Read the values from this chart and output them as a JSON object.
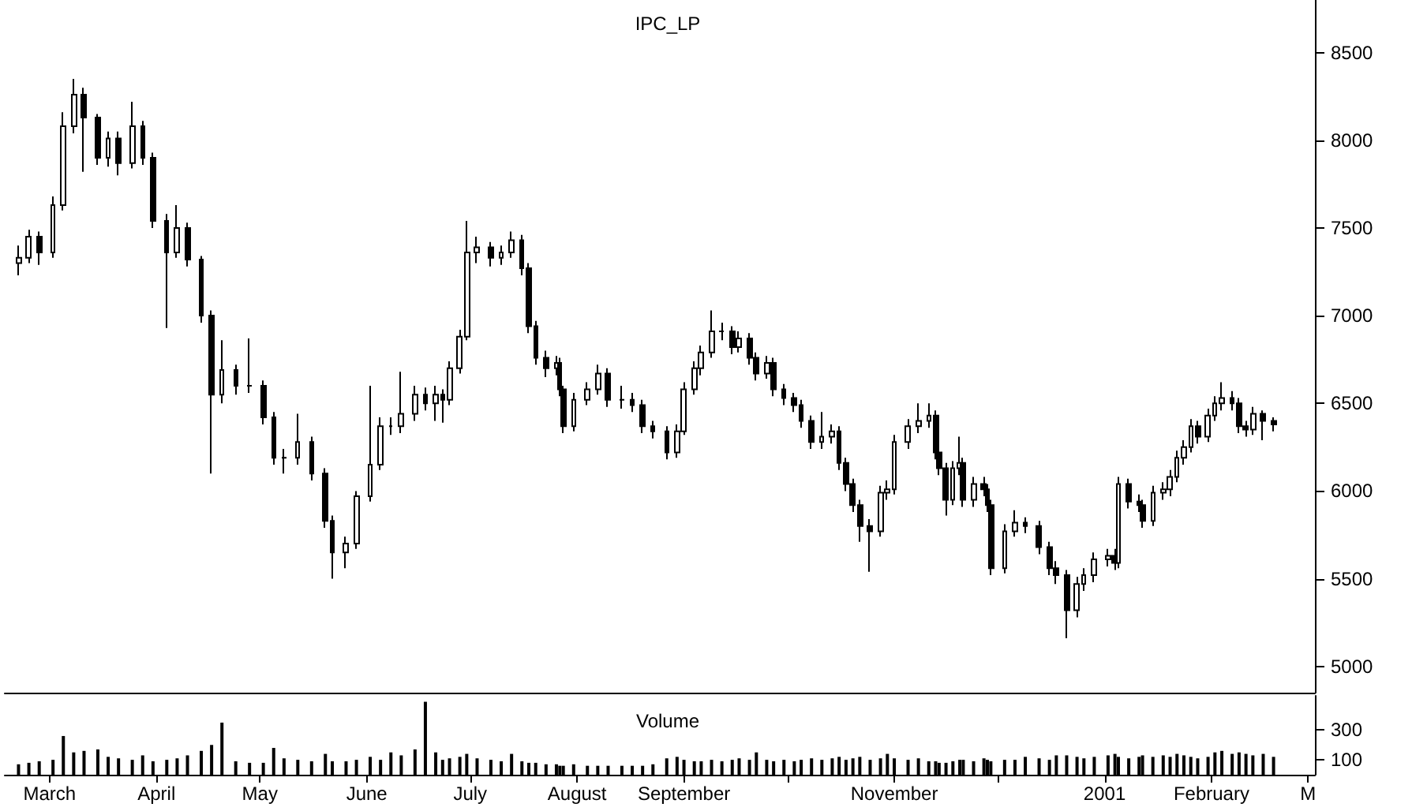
{
  "chart_data": [
    {
      "type": "candlestick",
      "title": "IPC_LP",
      "color": "#000000",
      "tick_labels": "y",
      "xlim": [
        "2000-02-17",
        "2001-03-03"
      ],
      "ylim": [
        4850,
        8800
      ],
      "yticks": [
        5000,
        5500,
        6000,
        6500,
        7000,
        7500,
        8000,
        8500
      ],
      "x": [
        "2000-02-21",
        "2000-02-24",
        "2000-02-27",
        "2000-03-02",
        "2000-03-05",
        "2000-03-08",
        "2000-03-11",
        "2000-03-15",
        "2000-03-18",
        "2000-03-21",
        "2000-03-25",
        "2000-03-28",
        "2000-03-31",
        "2000-04-04",
        "2000-04-07",
        "2000-04-10",
        "2000-04-14",
        "2000-04-17",
        "2000-04-20",
        "2000-04-24",
        "2000-04-28",
        "2000-05-02",
        "2000-05-05",
        "2000-05-08",
        "2000-05-12",
        "2000-05-16",
        "2000-05-20",
        "2000-05-22",
        "2000-05-26",
        "2000-05-29",
        "2000-06-02",
        "2000-06-05",
        "2000-06-08",
        "2000-06-11",
        "2000-06-15",
        "2000-06-18",
        "2000-06-21",
        "2000-06-23",
        "2000-06-25",
        "2000-06-28",
        "2000-06-30",
        "2000-07-03",
        "2000-07-07",
        "2000-07-10",
        "2000-07-13",
        "2000-07-16",
        "2000-07-18",
        "2000-07-20",
        "2000-07-23",
        "2000-07-26",
        "2000-07-27",
        "2000-07-28",
        "2000-07-31",
        "2000-08-04",
        "2000-08-07",
        "2000-08-10",
        "2000-08-14",
        "2000-08-17",
        "2000-08-20",
        "2000-08-23",
        "2000-08-27",
        "2000-08-30",
        "2000-09-01",
        "2000-09-04",
        "2000-09-06",
        "2000-09-09",
        "2000-09-12",
        "2000-09-15",
        "2000-09-17",
        "2000-09-20",
        "2000-09-22",
        "2000-09-25",
        "2000-09-27",
        "2000-09-30",
        "2000-10-03",
        "2000-10-05",
        "2000-10-08",
        "2000-10-11",
        "2000-10-14",
        "2000-10-16",
        "2000-10-18",
        "2000-10-20",
        "2000-10-22",
        "2000-10-25",
        "2000-10-28",
        "2000-10-30",
        "2000-11-01",
        "2000-11-05",
        "2000-11-08",
        "2000-11-11",
        "2000-11-13",
        "2000-11-14",
        "2000-11-16",
        "2000-11-18",
        "2000-11-20",
        "2000-11-21",
        "2000-11-24",
        "2000-11-27",
        "2000-11-28",
        "2000-11-29",
        "2000-12-03",
        "2000-12-06",
        "2000-12-09",
        "2000-12-13",
        "2000-12-16",
        "2000-12-18",
        "2000-12-21",
        "2000-12-24",
        "2000-12-26",
        "2000-12-29",
        "2001-01-02",
        "2001-01-04",
        "2001-01-05",
        "2001-01-08",
        "2001-01-11",
        "2001-01-12",
        "2001-01-15",
        "2001-01-18",
        "2001-01-20",
        "2001-01-22",
        "2001-01-24",
        "2001-01-26",
        "2001-01-28",
        "2001-01-31",
        "2001-02-02",
        "2001-02-04",
        "2001-02-07",
        "2001-02-09",
        "2001-02-11",
        "2001-02-13",
        "2001-02-16",
        "2001-02-19"
      ],
      "ohlc": [
        [
          7300,
          7400,
          7230,
          7330
        ],
        [
          7330,
          7490,
          7300,
          7450
        ],
        [
          7450,
          7480,
          7290,
          7360
        ],
        [
          7360,
          7680,
          7330,
          7630
        ],
        [
          7630,
          8160,
          7600,
          8080
        ],
        [
          8080,
          8350,
          8040,
          8260
        ],
        [
          8260,
          8300,
          7820,
          8130
        ],
        [
          8130,
          8150,
          7860,
          7900
        ],
        [
          7900,
          8050,
          7850,
          8010
        ],
        [
          8010,
          8050,
          7800,
          7870
        ],
        [
          7870,
          8220,
          7840,
          8080
        ],
        [
          8080,
          8110,
          7860,
          7900
        ],
        [
          7900,
          7930,
          7500,
          7540
        ],
        [
          7540,
          7580,
          6930,
          7360
        ],
        [
          7360,
          7630,
          7330,
          7500
        ],
        [
          7500,
          7530,
          7280,
          7320
        ],
        [
          7320,
          7340,
          6960,
          7000
        ],
        [
          7000,
          7030,
          6100,
          6550
        ],
        [
          6550,
          6860,
          6500,
          6690
        ],
        [
          6690,
          6720,
          6550,
          6600
        ],
        [
          6600,
          6870,
          6560,
          6600
        ],
        [
          6600,
          6630,
          6380,
          6420
        ],
        [
          6420,
          6450,
          6150,
          6190
        ],
        [
          6190,
          6240,
          6100,
          6190
        ],
        [
          6190,
          6440,
          6150,
          6280
        ],
        [
          6280,
          6310,
          6060,
          6100
        ],
        [
          6100,
          6130,
          5790,
          5830
        ],
        [
          5830,
          5860,
          5500,
          5650
        ],
        [
          5650,
          5740,
          5560,
          5700
        ],
        [
          5700,
          6000,
          5670,
          5970
        ],
        [
          5970,
          6600,
          5940,
          6150
        ],
        [
          6150,
          6420,
          6120,
          6370
        ],
        [
          6370,
          6420,
          6320,
          6370
        ],
        [
          6370,
          6680,
          6330,
          6440
        ],
        [
          6440,
          6600,
          6400,
          6550
        ],
        [
          6550,
          6590,
          6460,
          6500
        ],
        [
          6500,
          6600,
          6400,
          6550
        ],
        [
          6550,
          6580,
          6390,
          6520
        ],
        [
          6520,
          6740,
          6490,
          6700
        ],
        [
          6700,
          6920,
          6670,
          6880
        ],
        [
          6880,
          7540,
          6860,
          7360
        ],
        [
          7360,
          7450,
          7300,
          7390
        ],
        [
          7390,
          7420,
          7280,
          7330
        ],
        [
          7330,
          7400,
          7290,
          7360
        ],
        [
          7360,
          7480,
          7330,
          7430
        ],
        [
          7430,
          7460,
          7230,
          7270
        ],
        [
          7270,
          7300,
          6900,
          6940
        ],
        [
          6940,
          6970,
          6720,
          6760
        ],
        [
          6760,
          6800,
          6650,
          6700
        ],
        [
          6700,
          6770,
          6660,
          6730
        ],
        [
          6730,
          6760,
          6540,
          6580
        ],
        [
          6580,
          6600,
          6330,
          6370
        ],
        [
          6370,
          6560,
          6340,
          6520
        ],
        [
          6520,
          6620,
          6490,
          6580
        ],
        [
          6580,
          6720,
          6550,
          6670
        ],
        [
          6670,
          6700,
          6480,
          6520
        ],
        [
          6520,
          6600,
          6470,
          6520
        ],
        [
          6520,
          6560,
          6450,
          6490
        ],
        [
          6490,
          6520,
          6330,
          6370
        ],
        [
          6370,
          6400,
          6300,
          6340
        ],
        [
          6340,
          6370,
          6180,
          6220
        ],
        [
          6220,
          6380,
          6190,
          6340
        ],
        [
          6340,
          6620,
          6320,
          6580
        ],
        [
          6580,
          6740,
          6550,
          6700
        ],
        [
          6700,
          6830,
          6660,
          6790
        ],
        [
          6790,
          7030,
          6760,
          6910
        ],
        [
          6910,
          6960,
          6860,
          6910
        ],
        [
          6910,
          6940,
          6780,
          6820
        ],
        [
          6820,
          6910,
          6790,
          6870
        ],
        [
          6870,
          6900,
          6720,
          6760
        ],
        [
          6760,
          6790,
          6630,
          6670
        ],
        [
          6670,
          6770,
          6640,
          6730
        ],
        [
          6730,
          6760,
          6540,
          6580
        ],
        [
          6580,
          6610,
          6490,
          6530
        ],
        [
          6530,
          6560,
          6450,
          6490
        ],
        [
          6490,
          6520,
          6360,
          6400
        ],
        [
          6400,
          6430,
          6240,
          6280
        ],
        [
          6280,
          6450,
          6240,
          6310
        ],
        [
          6310,
          6380,
          6270,
          6340
        ],
        [
          6340,
          6370,
          6120,
          6160
        ],
        [
          6160,
          6190,
          6000,
          6040
        ],
        [
          6040,
          6070,
          5880,
          5920
        ],
        [
          5920,
          5950,
          5710,
          5800
        ],
        [
          5800,
          5840,
          5540,
          5770
        ],
        [
          5770,
          6030,
          5740,
          5990
        ],
        [
          5990,
          6060,
          5950,
          6010
        ],
        [
          6010,
          6320,
          5980,
          6280
        ],
        [
          6280,
          6410,
          6240,
          6370
        ],
        [
          6370,
          6500,
          6330,
          6400
        ],
        [
          6400,
          6500,
          6360,
          6430
        ],
        [
          6430,
          6460,
          6180,
          6220
        ],
        [
          6220,
          6250,
          6090,
          6130
        ],
        [
          6130,
          6160,
          5860,
          5950
        ],
        [
          5950,
          6170,
          5920,
          6130
        ],
        [
          6130,
          6310,
          6090,
          6160
        ],
        [
          6160,
          6190,
          5910,
          5950
        ],
        [
          5950,
          6080,
          5910,
          6040
        ],
        [
          6040,
          6080,
          5970,
          6010
        ],
        [
          6010,
          6040,
          5880,
          5920
        ],
        [
          5920,
          5950,
          5520,
          5560
        ],
        [
          5560,
          5810,
          5530,
          5770
        ],
        [
          5770,
          5890,
          5740,
          5820
        ],
        [
          5820,
          5850,
          5760,
          5800
        ],
        [
          5800,
          5830,
          5640,
          5680
        ],
        [
          5680,
          5710,
          5520,
          5560
        ],
        [
          5560,
          5600,
          5470,
          5520
        ],
        [
          5520,
          5550,
          5160,
          5320
        ],
        [
          5320,
          5510,
          5280,
          5470
        ],
        [
          5470,
          5560,
          5430,
          5520
        ],
        [
          5520,
          5650,
          5480,
          5610
        ],
        [
          5610,
          5670,
          5570,
          5630
        ],
        [
          5630,
          5670,
          5550,
          5590
        ],
        [
          5590,
          6080,
          5560,
          6040
        ],
        [
          6040,
          6070,
          5900,
          5940
        ],
        [
          5940,
          5980,
          5880,
          5920
        ],
        [
          5920,
          5950,
          5790,
          5830
        ],
        [
          5830,
          6030,
          5800,
          5990
        ],
        [
          5990,
          6050,
          5950,
          6010
        ],
        [
          6010,
          6120,
          5970,
          6080
        ],
        [
          6080,
          6230,
          6050,
          6190
        ],
        [
          6190,
          6290,
          6150,
          6250
        ],
        [
          6250,
          6410,
          6220,
          6370
        ],
        [
          6370,
          6400,
          6270,
          6310
        ],
        [
          6310,
          6470,
          6280,
          6430
        ],
        [
          6430,
          6540,
          6400,
          6500
        ],
        [
          6500,
          6620,
          6460,
          6530
        ],
        [
          6530,
          6570,
          6460,
          6500
        ],
        [
          6500,
          6530,
          6330,
          6370
        ],
        [
          6370,
          6400,
          6310,
          6350
        ],
        [
          6350,
          6480,
          6320,
          6440
        ],
        [
          6440,
          6460,
          6290,
          6400
        ],
        [
          6400,
          6420,
          6340,
          6380
        ]
      ]
    },
    {
      "type": "bar",
      "title": "Volume",
      "color": "#000000",
      "xlim": [
        "2000-02-17",
        "2001-03-03"
      ],
      "xticks": [
        {
          "value": "2000-03-01",
          "label": "March"
        },
        {
          "value": "2000-04-01",
          "label": "April"
        },
        {
          "value": "2000-05-01",
          "label": "May"
        },
        {
          "value": "2000-06-01",
          "label": "June"
        },
        {
          "value": "2000-07-01",
          "label": "July"
        },
        {
          "value": "2000-08-01",
          "label": "August"
        },
        {
          "value": "2000-09-01",
          "label": "September"
        },
        {
          "value": "2000-10-01",
          "label": null
        },
        {
          "value": "2000-11-01",
          "label": "November"
        },
        {
          "value": "2000-12-01",
          "label": null
        },
        {
          "value": "2001-01-01",
          "label": "2001"
        },
        {
          "value": "2001-02-01",
          "label": "February"
        },
        {
          "value": "2001-03-01",
          "label": "M"
        }
      ],
      "ylim": [
        0,
        530
      ],
      "yticks": [
        100,
        300
      ],
      "x": [
        "2000-02-21",
        "2000-02-24",
        "2000-02-27",
        "2000-03-02",
        "2000-03-05",
        "2000-03-08",
        "2000-03-11",
        "2000-03-15",
        "2000-03-18",
        "2000-03-21",
        "2000-03-25",
        "2000-03-28",
        "2000-03-31",
        "2000-04-04",
        "2000-04-07",
        "2000-04-10",
        "2000-04-14",
        "2000-04-17",
        "2000-04-20",
        "2000-04-24",
        "2000-04-28",
        "2000-05-02",
        "2000-05-05",
        "2000-05-08",
        "2000-05-12",
        "2000-05-16",
        "2000-05-20",
        "2000-05-22",
        "2000-05-26",
        "2000-05-29",
        "2000-06-02",
        "2000-06-05",
        "2000-06-08",
        "2000-06-11",
        "2000-06-15",
        "2000-06-18",
        "2000-06-21",
        "2000-06-23",
        "2000-06-25",
        "2000-06-28",
        "2000-06-30",
        "2000-07-03",
        "2000-07-07",
        "2000-07-10",
        "2000-07-13",
        "2000-07-16",
        "2000-07-18",
        "2000-07-20",
        "2000-07-23",
        "2000-07-26",
        "2000-07-27",
        "2000-07-28",
        "2000-07-31",
        "2000-08-04",
        "2000-08-07",
        "2000-08-10",
        "2000-08-14",
        "2000-08-17",
        "2000-08-20",
        "2000-08-23",
        "2000-08-27",
        "2000-08-30",
        "2000-09-01",
        "2000-09-04",
        "2000-09-06",
        "2000-09-09",
        "2000-09-12",
        "2000-09-15",
        "2000-09-17",
        "2000-09-20",
        "2000-09-22",
        "2000-09-25",
        "2000-09-27",
        "2000-09-30",
        "2000-10-03",
        "2000-10-05",
        "2000-10-08",
        "2000-10-11",
        "2000-10-14",
        "2000-10-16",
        "2000-10-18",
        "2000-10-20",
        "2000-10-22",
        "2000-10-25",
        "2000-10-28",
        "2000-10-30",
        "2000-11-01",
        "2000-11-05",
        "2000-11-08",
        "2000-11-11",
        "2000-11-13",
        "2000-11-14",
        "2000-11-16",
        "2000-11-18",
        "2000-11-20",
        "2000-11-21",
        "2000-11-24",
        "2000-11-27",
        "2000-11-28",
        "2000-11-29",
        "2000-12-03",
        "2000-12-06",
        "2000-12-09",
        "2000-12-13",
        "2000-12-16",
        "2000-12-18",
        "2000-12-21",
        "2000-12-24",
        "2000-12-26",
        "2000-12-29",
        "2001-01-02",
        "2001-01-04",
        "2001-01-05",
        "2001-01-08",
        "2001-01-11",
        "2001-01-12",
        "2001-01-15",
        "2001-01-18",
        "2001-01-20",
        "2001-01-22",
        "2001-01-24",
        "2001-01-26",
        "2001-01-28",
        "2001-01-31",
        "2001-02-02",
        "2001-02-04",
        "2001-02-07",
        "2001-02-09",
        "2001-02-11",
        "2001-02-13",
        "2001-02-16",
        "2001-02-19"
      ],
      "values": [
        70,
        80,
        90,
        100,
        260,
        150,
        160,
        170,
        120,
        110,
        100,
        130,
        90,
        100,
        110,
        130,
        160,
        200,
        350,
        90,
        80,
        80,
        180,
        110,
        100,
        90,
        140,
        90,
        90,
        100,
        120,
        100,
        150,
        130,
        170,
        490,
        150,
        100,
        110,
        120,
        140,
        110,
        100,
        90,
        140,
        90,
        80,
        80,
        70,
        70,
        60,
        60,
        70,
        60,
        60,
        60,
        60,
        60,
        60,
        70,
        110,
        120,
        100,
        90,
        90,
        100,
        90,
        100,
        110,
        100,
        150,
        100,
        90,
        100,
        90,
        100,
        110,
        100,
        110,
        120,
        100,
        110,
        120,
        100,
        110,
        140,
        110,
        100,
        110,
        90,
        90,
        80,
        80,
        90,
        100,
        100,
        90,
        110,
        100,
        90,
        100,
        100,
        120,
        110,
        100,
        130,
        130,
        120,
        110,
        120,
        130,
        140,
        120,
        110,
        120,
        130,
        120,
        130,
        120,
        140,
        130,
        120,
        110,
        120,
        150,
        160,
        140,
        150,
        140,
        130,
        140,
        120
      ]
    }
  ]
}
